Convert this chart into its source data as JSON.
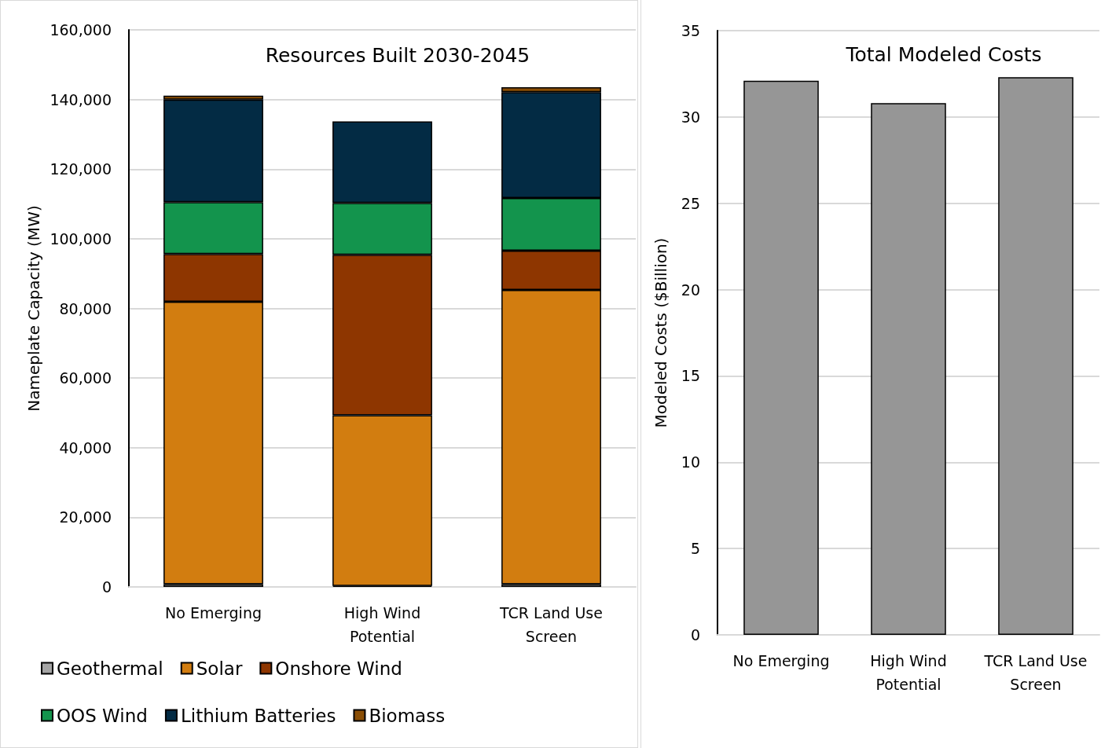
{
  "chart_data": [
    {
      "type": "bar",
      "title": "Resources Built 2030-2045",
      "ylabel": "Nameplate Capacity (MW)",
      "categories": [
        "No Emerging",
        "High Wind\nPotential",
        "TCR Land Use\nScreen"
      ],
      "stacked": true,
      "ylim": [
        0,
        160000
      ],
      "yticks": [
        {
          "value": 0,
          "label": "0"
        },
        {
          "value": 20000,
          "label": "20,000"
        },
        {
          "value": 40000,
          "label": "40,000"
        },
        {
          "value": 60000,
          "label": "60,000"
        },
        {
          "value": 80000,
          "label": "80,000"
        },
        {
          "value": 100000,
          "label": "100,000"
        },
        {
          "value": 120000,
          "label": "120,000"
        },
        {
          "value": 140000,
          "label": "140,000"
        },
        {
          "value": 160000,
          "label": "160,000"
        }
      ],
      "grid": "y",
      "legend": "bottom",
      "series": [
        {
          "name": "Geothermal",
          "color": "#a5a5a5",
          "values": [
            800,
            300,
            800
          ]
        },
        {
          "name": "Solar",
          "color": "#d27d10",
          "values": [
            81100,
            49000,
            84500
          ]
        },
        {
          "name": "Onshore Wind",
          "color": "#8e3600",
          "values": [
            13700,
            46100,
            11300
          ]
        },
        {
          "name": "OOS Wind",
          "color": "#13944d",
          "values": [
            14900,
            14900,
            15100
          ]
        },
        {
          "name": "Lithium Batteries",
          "color": "#032b44",
          "values": [
            29500,
            23400,
            30400
          ]
        },
        {
          "name": "Biomass",
          "color": "#8a4e05",
          "values": [
            1100,
            null,
            1400
          ]
        }
      ]
    },
    {
      "type": "bar",
      "title": "Total Modeled Costs",
      "ylabel": "Modeled Costs ($Billion)",
      "categories": [
        "No Emerging",
        "High Wind\nPotential",
        "TCR Land Use\nScreen"
      ],
      "ylim": [
        0,
        35
      ],
      "yticks": [
        0,
        5,
        10,
        15,
        20,
        25,
        30,
        35
      ],
      "grid": "y",
      "series": [
        {
          "color": "#969696",
          "values": [
            32.1,
            30.8,
            32.3
          ]
        }
      ]
    }
  ]
}
